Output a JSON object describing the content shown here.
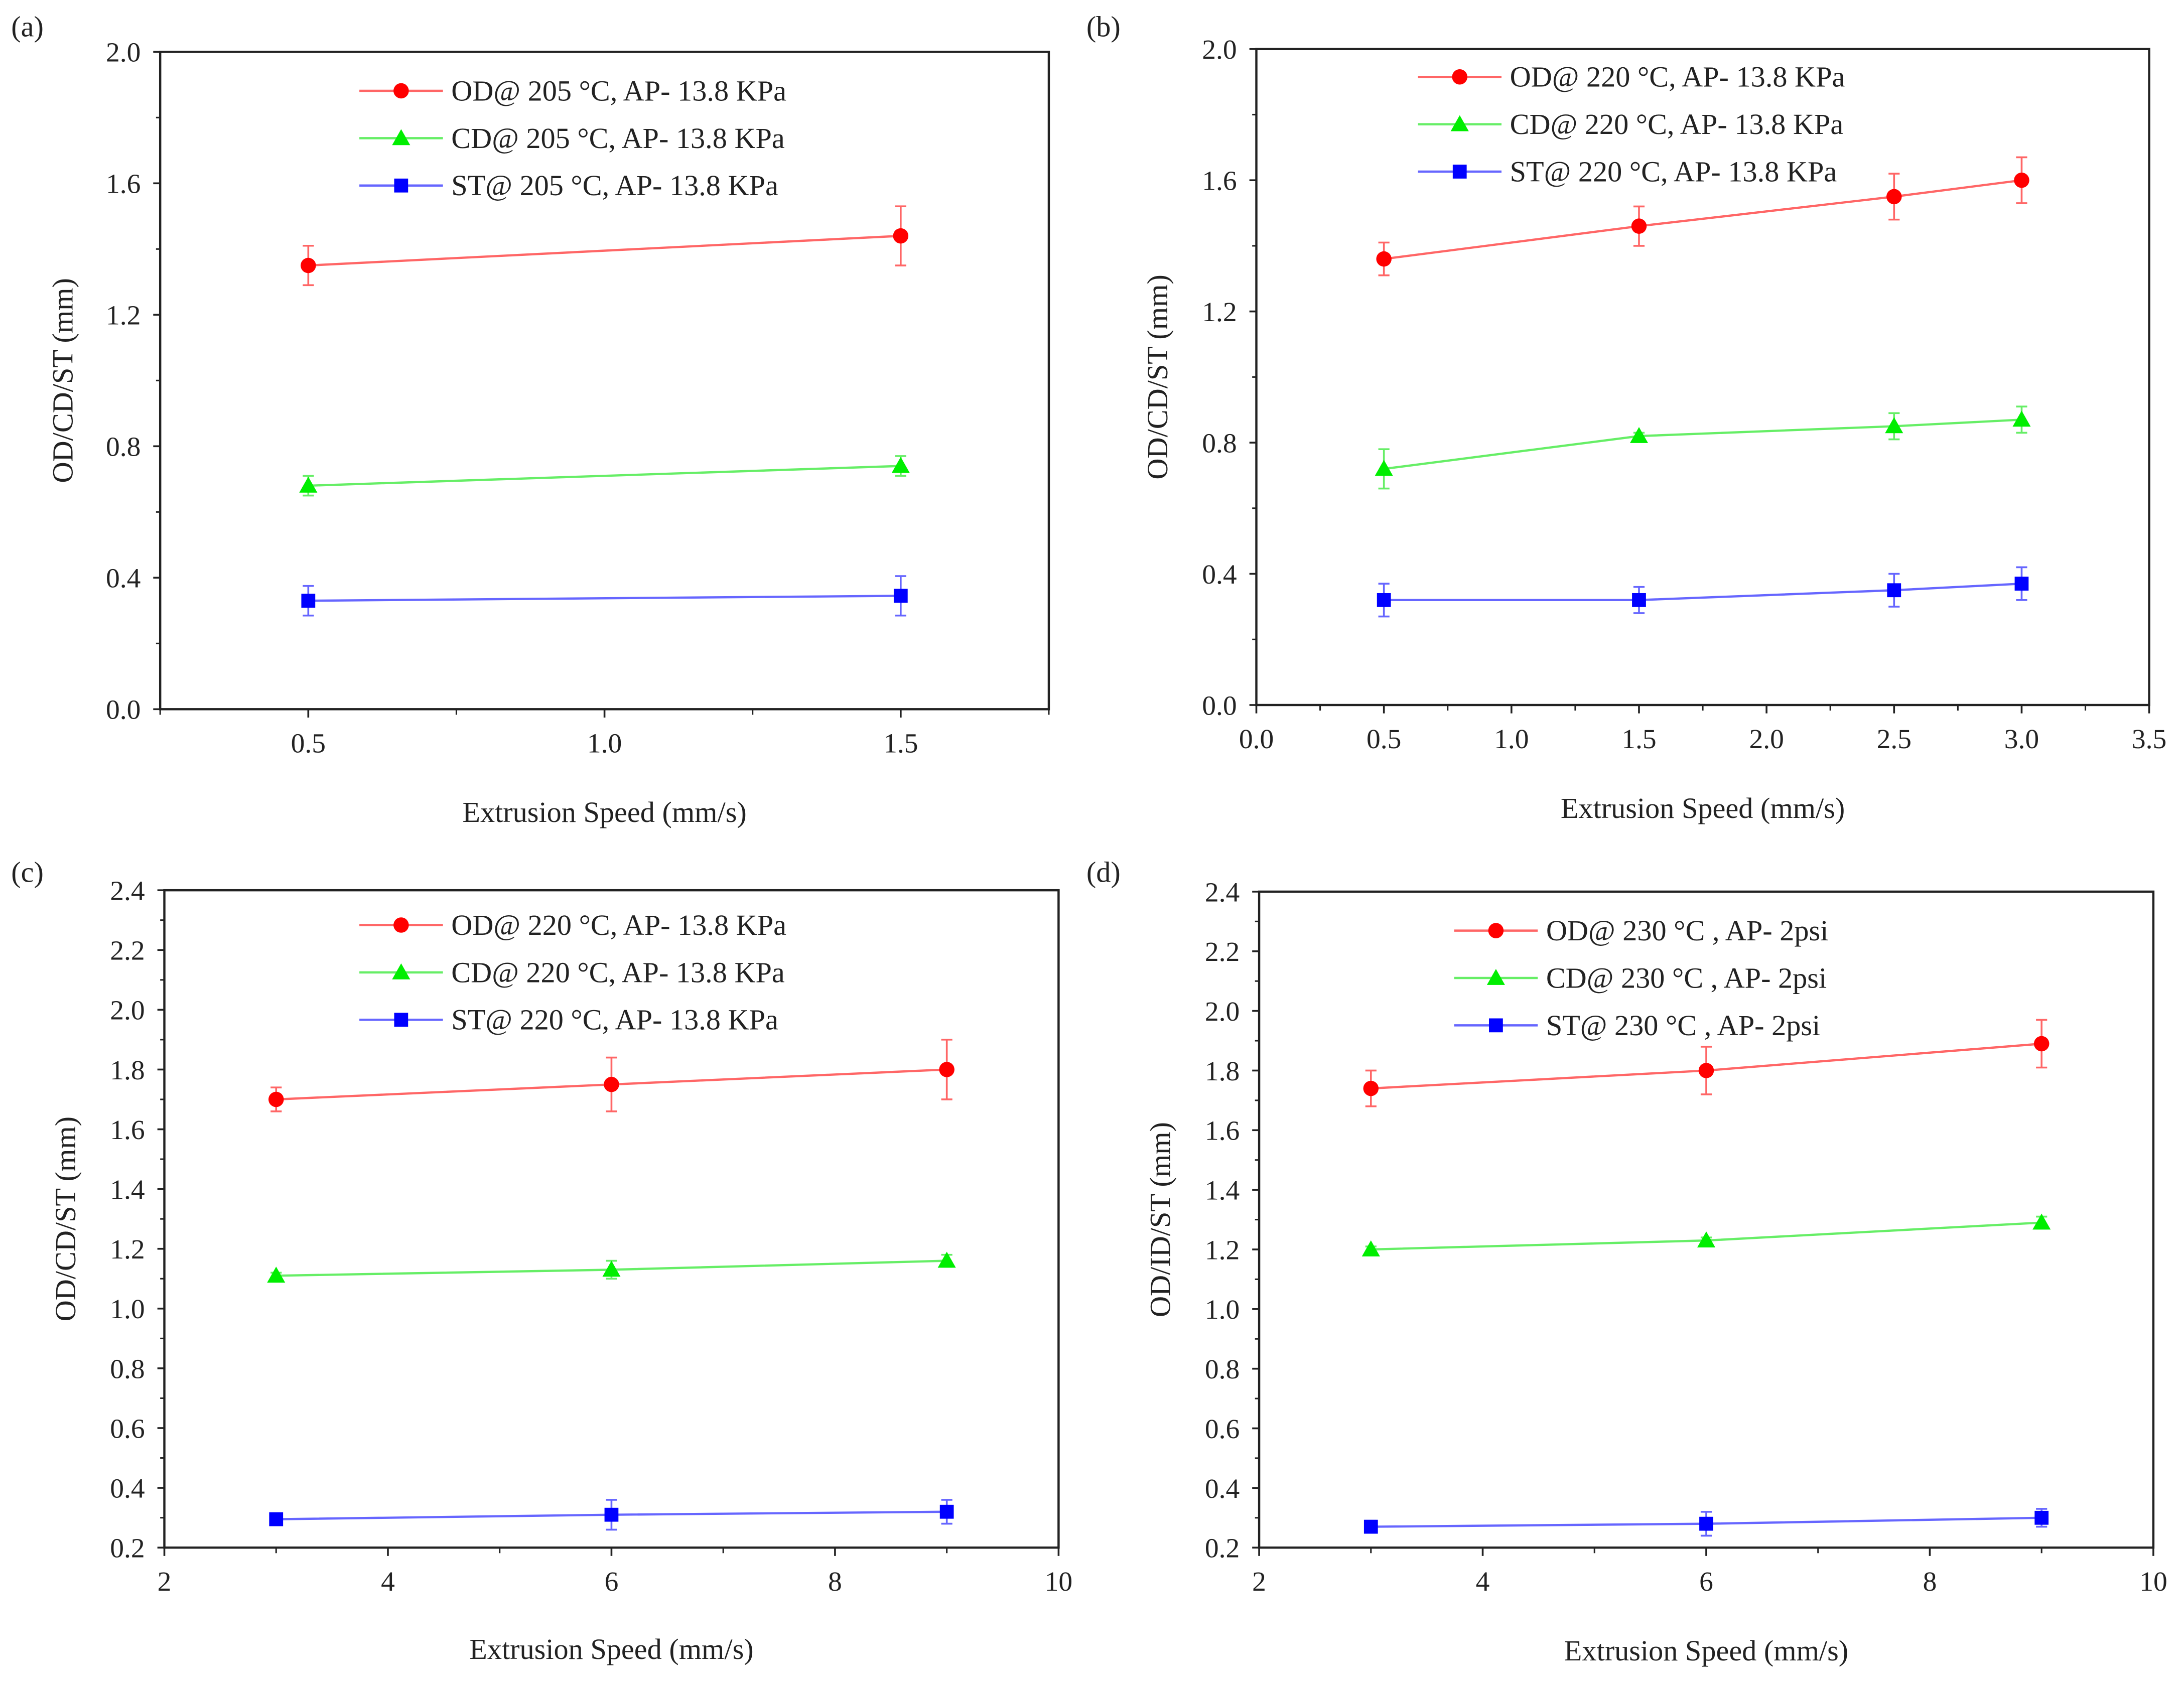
{
  "colors": {
    "OD": "#ff0000",
    "CD": "#00ee00",
    "ST": "#0000ff",
    "OD_line": "#ff6666",
    "CD_line": "#66ee66",
    "ST_line": "#6666ff"
  },
  "chart_data": [
    {
      "panel": "(a)",
      "type": "line",
      "xlabel": "Extrusion Speed (mm/s)",
      "ylabel": "OD/CD/ST (mm)",
      "xlim": [
        0.25,
        1.75
      ],
      "ylim": [
        0,
        2.0
      ],
      "xticks": [
        0.5,
        1.0,
        1.5
      ],
      "xtick_labels": [
        "0.5",
        "1.0",
        "1.5"
      ],
      "xminor": [
        0.25,
        0.75,
        1.25,
        1.75
      ],
      "yticks": [
        0,
        0.4,
        0.8,
        1.2,
        1.6,
        2.0
      ],
      "ytick_labels": [
        "0.0",
        "0.4",
        "0.8",
        "1.2",
        "1.6",
        "2.0"
      ],
      "yminor": [
        0.2,
        0.6,
        1.0,
        1.4,
        1.8
      ],
      "legend_position": "top-center",
      "grid": false,
      "x": [
        0.5,
        1.5
      ],
      "series": [
        {
          "key": "OD",
          "marker": "circle",
          "name": "OD@ 205 °C, AP- 13.8 KPa",
          "values": [
            1.35,
            1.44
          ],
          "errors": [
            0.06,
            0.09
          ]
        },
        {
          "key": "CD",
          "marker": "triangle",
          "name": "CD@ 205 °C, AP- 13.8 KPa",
          "values": [
            0.68,
            0.74
          ],
          "errors": [
            0.03,
            0.03
          ]
        },
        {
          "key": "ST",
          "marker": "square",
          "name": "ST@ 205 °C, AP- 13.8 KPa",
          "values": [
            0.33,
            0.345
          ],
          "errors": [
            0.045,
            0.06
          ]
        }
      ]
    },
    {
      "panel": "(b)",
      "type": "line",
      "xlabel": "Extrusion Speed (mm/s)",
      "ylabel": "OD/CD/ST (mm)",
      "xlim": [
        0,
        3.5
      ],
      "ylim": [
        0,
        2.0
      ],
      "xticks": [
        0,
        0.5,
        1.0,
        1.5,
        2.0,
        2.5,
        3.0,
        3.5
      ],
      "xtick_labels": [
        "0.0",
        "0.5",
        "1.0",
        "1.5",
        "2.0",
        "2.5",
        "3.0",
        "3.5"
      ],
      "xminor": [
        0.25,
        0.75,
        1.25,
        1.75,
        2.25,
        2.75,
        3.25
      ],
      "yticks": [
        0,
        0.4,
        0.8,
        1.2,
        1.6,
        2.0
      ],
      "ytick_labels": [
        "0.0",
        "0.4",
        "0.8",
        "1.2",
        "1.6",
        "2.0"
      ],
      "yminor": [
        0.2,
        0.6,
        1.0,
        1.4,
        1.8
      ],
      "legend_position": "top-center",
      "grid": false,
      "x": [
        0.5,
        1.5,
        2.5,
        3.0
      ],
      "series": [
        {
          "key": "OD",
          "marker": "circle",
          "name": "OD@ 220 °C, AP- 13.8 KPa",
          "values": [
            1.36,
            1.46,
            1.55,
            1.6
          ],
          "errors": [
            0.05,
            0.06,
            0.07,
            0.07
          ]
        },
        {
          "key": "CD",
          "marker": "triangle",
          "name": "CD@ 220 °C, AP- 13.8 KPa",
          "values": [
            0.72,
            0.82,
            0.85,
            0.87
          ],
          "errors": [
            0.06,
            0.01,
            0.04,
            0.04
          ]
        },
        {
          "key": "ST",
          "marker": "square",
          "name": "ST@ 220 °C, AP- 13.8 KPa",
          "values": [
            0.32,
            0.32,
            0.35,
            0.37
          ],
          "errors": [
            0.05,
            0.04,
            0.05,
            0.05
          ]
        }
      ]
    },
    {
      "panel": "(c)",
      "type": "line",
      "xlabel": "Extrusion Speed (mm/s)",
      "ylabel": "OD/CD/ST (mm)",
      "xlim": [
        2,
        10
      ],
      "ylim": [
        0.2,
        2.4
      ],
      "xticks": [
        2,
        4,
        6,
        8,
        10
      ],
      "xtick_labels": [
        "2",
        "4",
        "6",
        "8",
        "10"
      ],
      "xminor": [
        3,
        5,
        7,
        9
      ],
      "yticks": [
        0.2,
        0.4,
        0.6,
        0.8,
        1.0,
        1.2,
        1.4,
        1.6,
        1.8,
        2.0,
        2.2,
        2.4
      ],
      "ytick_labels": [
        "0.2",
        "0.4",
        "0.6",
        "0.8",
        "1.0",
        "1.2",
        "1.4",
        "1.6",
        "1.8",
        "2.0",
        "2.2",
        "2.4"
      ],
      "yminor": [
        0.3,
        0.5,
        0.7,
        0.9,
        1.1,
        1.3,
        1.5,
        1.7,
        1.9,
        2.1,
        2.3
      ],
      "legend_position": "top-center",
      "grid": false,
      "x": [
        3,
        6,
        9
      ],
      "series": [
        {
          "key": "OD",
          "marker": "circle",
          "name": "OD@ 220 °C, AP- 13.8 KPa",
          "values": [
            1.7,
            1.75,
            1.8
          ],
          "errors": [
            0.04,
            0.09,
            0.1
          ]
        },
        {
          "key": "CD",
          "marker": "triangle",
          "name": "CD@ 220 °C, AP- 13.8 KPa",
          "values": [
            1.11,
            1.13,
            1.16
          ],
          "errors": [
            0.01,
            0.03,
            0.02
          ]
        },
        {
          "key": "ST",
          "marker": "square",
          "name": "ST@ 220 °C, AP- 13.8 KPa",
          "values": [
            0.295,
            0.31,
            0.32
          ],
          "errors": [
            0.01,
            0.05,
            0.04
          ]
        }
      ]
    },
    {
      "panel": "(d)",
      "type": "line",
      "xlabel": "Extrusion Speed (mm/s)",
      "ylabel": "OD/ID/ST (mm)",
      "xlim": [
        2,
        10
      ],
      "ylim": [
        0.2,
        2.4
      ],
      "xticks": [
        2,
        4,
        6,
        8,
        10
      ],
      "xtick_labels": [
        "2",
        "4",
        "6",
        "8",
        "10"
      ],
      "xminor": [
        3,
        5,
        7,
        9
      ],
      "yticks": [
        0.2,
        0.4,
        0.6,
        0.8,
        1.0,
        1.2,
        1.4,
        1.6,
        1.8,
        2.0,
        2.2,
        2.4
      ],
      "ytick_labels": [
        "0.2",
        "0.4",
        "0.6",
        "0.8",
        "1.0",
        "1.2",
        "1.4",
        "1.6",
        "1.8",
        "2.0",
        "2.2",
        "2.4"
      ],
      "yminor": [
        0.3,
        0.5,
        0.7,
        0.9,
        1.1,
        1.3,
        1.5,
        1.7,
        1.9,
        2.1,
        2.3
      ],
      "legend_position": "top-center",
      "grid": false,
      "x": [
        3,
        6,
        9
      ],
      "series": [
        {
          "key": "OD",
          "marker": "circle",
          "name": "OD@ 230 °C , AP- 2psi",
          "values": [
            1.74,
            1.8,
            1.89
          ],
          "errors": [
            0.06,
            0.08,
            0.08
          ]
        },
        {
          "key": "CD",
          "marker": "triangle",
          "name": "CD@ 230 °C , AP- 2psi",
          "values": [
            1.2,
            1.23,
            1.29
          ],
          "errors": [
            0.01,
            0.01,
            0.02
          ]
        },
        {
          "key": "ST",
          "marker": "square",
          "name": "ST@ 230 °C , AP- 2psi",
          "values": [
            0.27,
            0.28,
            0.3
          ],
          "errors": [
            0.02,
            0.04,
            0.03
          ]
        }
      ]
    }
  ]
}
